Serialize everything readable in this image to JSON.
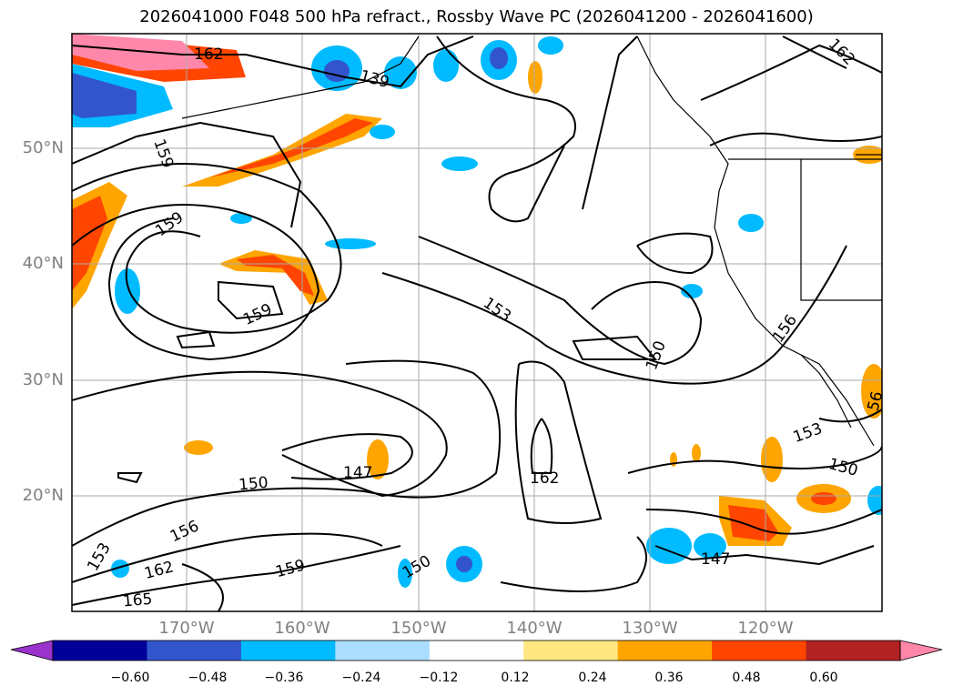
{
  "title": "2026041000 F048 500 hPa refract., Rossby Wave PC (2026041200 - 2026041600)",
  "latitude_labels": [
    "50°N",
    "40°N",
    "30°N",
    "20°N"
  ],
  "longitude_labels": [
    "170°W",
    "160°W",
    "150°W",
    "140°W",
    "130°W",
    "120°W"
  ],
  "colorbar": {
    "tick_labels": [
      "−0.60",
      "−0.48",
      "−0.36",
      "−0.24",
      "−0.12",
      "0.12",
      "0.24",
      "0.36",
      "0.48",
      "0.60"
    ],
    "colors": [
      "#9933cc",
      "#000099",
      "#3355cc",
      "#00bbff",
      "#aaddff",
      "#ffffff",
      "#ffe680",
      "#ffa500",
      "#ff4500",
      "#b22222",
      "#ff88aa"
    ]
  },
  "contour_labels": [
    "162",
    "159",
    "159",
    "159",
    "153",
    "150",
    "156",
    "150",
    "147",
    "162",
    "153",
    "150",
    "147",
    "162",
    "165",
    "159",
    "150",
    "153",
    "56",
    "162",
    "156",
    "139"
  ],
  "colors": {
    "negative_strong": "#3355cc",
    "negative_mid": "#00bbff",
    "negative_light": "#aaddff",
    "positive_light": "#ffe680",
    "positive_mid": "#ffa500",
    "positive_strong": "#ff4500",
    "positive_extreme": "#ff88aa",
    "gridline": "#aaaaaa",
    "contour": "#000000"
  }
}
